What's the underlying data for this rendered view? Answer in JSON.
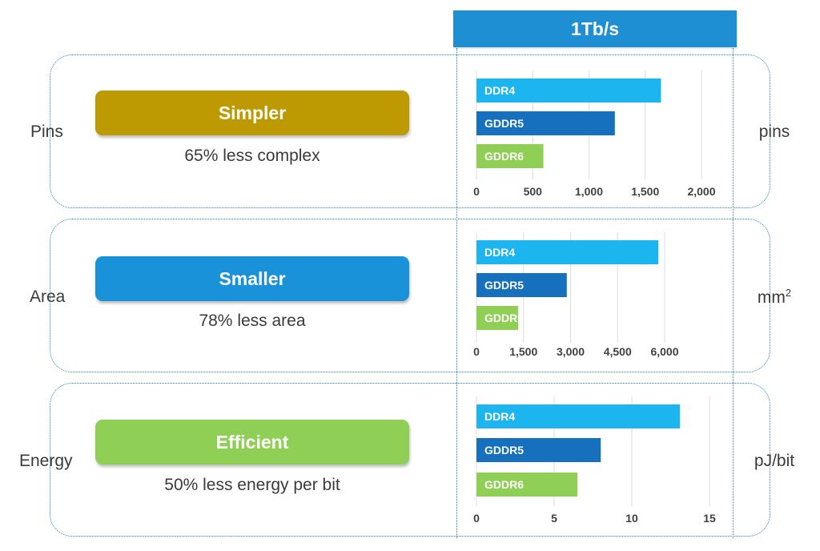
{
  "header": {
    "label": "1Tb/s",
    "color": "#1F8FD3"
  },
  "rows": [
    {
      "label": "Pins",
      "pill": "Simpler",
      "pill_color": "#BE9A02",
      "subtext": "65% less complex",
      "unit": "pins"
    },
    {
      "label": "Area",
      "pill": "Smaller",
      "pill_color": "#1A92DA",
      "subtext": "78% less area",
      "unit": "mm",
      "unit_sup": "2"
    },
    {
      "label": "Energy",
      "pill": "Efficient",
      "pill_color": "#8FCF55",
      "subtext": "50% less energy per bit",
      "unit": "pJ/bit"
    }
  ],
  "series_colors": {
    "DDR4": "#1DB5F0",
    "GDDR5": "#1770BE",
    "GDDR6": "#8FCF55"
  },
  "chart_data": [
    {
      "type": "bar",
      "orientation": "horizontal",
      "categories": [
        "DDR4",
        "GDDR5",
        "GDDR6"
      ],
      "values": [
        1640,
        1230,
        595
      ],
      "xlim": [
        0,
        2000
      ],
      "ticks": [
        0,
        500,
        1000,
        1500,
        2000
      ],
      "tick_labels": [
        "0",
        "500",
        "1,000",
        "1,500",
        "2,000"
      ],
      "grid": true
    },
    {
      "type": "bar",
      "orientation": "horizontal",
      "categories": [
        "DDR4",
        "GDDR5",
        "GDDR6"
      ],
      "values": [
        5800,
        2880,
        1330
      ],
      "xlim": [
        0,
        6000
      ],
      "ticks": [
        0,
        1500,
        3000,
        4500,
        6000
      ],
      "tick_labels": [
        "0",
        "1,500",
        "3,000",
        "4,500",
        "6,000"
      ],
      "grid": true
    },
    {
      "type": "bar",
      "orientation": "horizontal",
      "categories": [
        "DDR4",
        "GDDR5",
        "GDDR6"
      ],
      "values": [
        13.1,
        8.0,
        6.5
      ],
      "xlim": [
        0,
        15
      ],
      "ticks": [
        0,
        5,
        10,
        15
      ],
      "tick_labels": [
        "0",
        "5",
        "10",
        "15"
      ],
      "grid": true
    }
  ]
}
